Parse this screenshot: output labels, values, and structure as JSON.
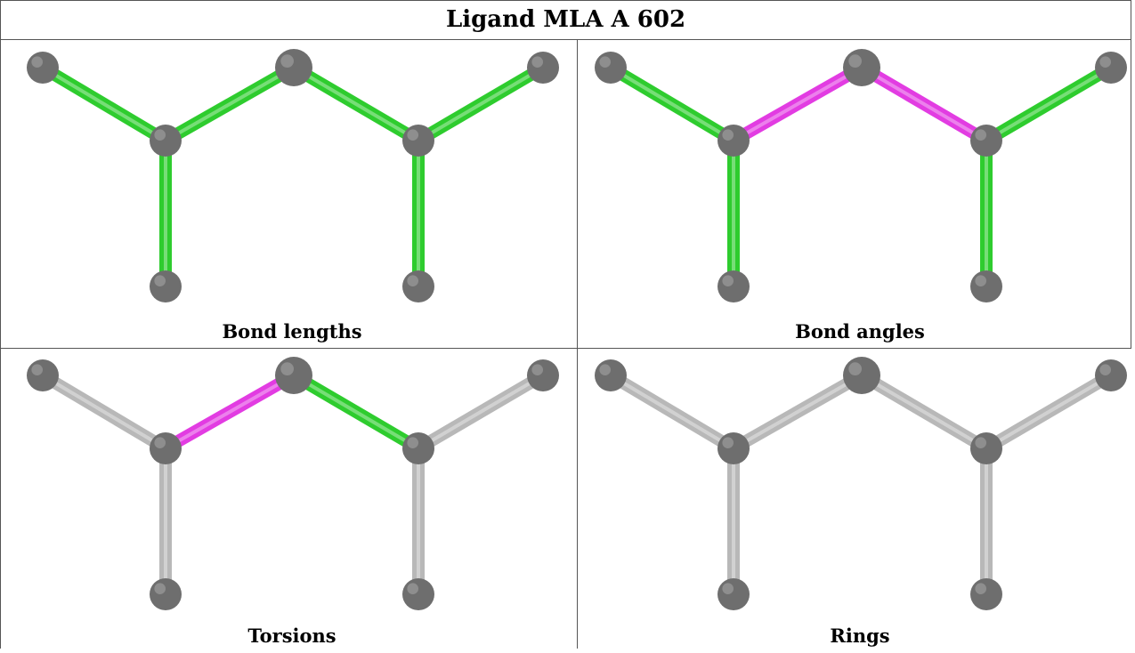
{
  "title": "Ligand MLA A 602",
  "colors": {
    "good": "#2ecc2e",
    "outlier": "#e23ce2",
    "neutral": "#b8b8b8",
    "atom": "#6e6e6e"
  },
  "panels": [
    {
      "caption": "Bond lengths",
      "bonds": [
        "green",
        "green",
        "green",
        "green",
        "green",
        "green",
        "green"
      ]
    },
    {
      "caption": "Bond angles",
      "bonds": [
        "green",
        "magenta",
        "magenta",
        "green",
        "green",
        "green",
        "green"
      ]
    },
    {
      "caption": "Torsions",
      "bonds": [
        "gray",
        "magenta",
        "green",
        "gray",
        "gray",
        "gray",
        "gray"
      ]
    },
    {
      "caption": "Rings",
      "bonds": [
        "gray",
        "gray",
        "gray",
        "gray",
        "gray",
        "gray",
        "gray"
      ]
    }
  ]
}
